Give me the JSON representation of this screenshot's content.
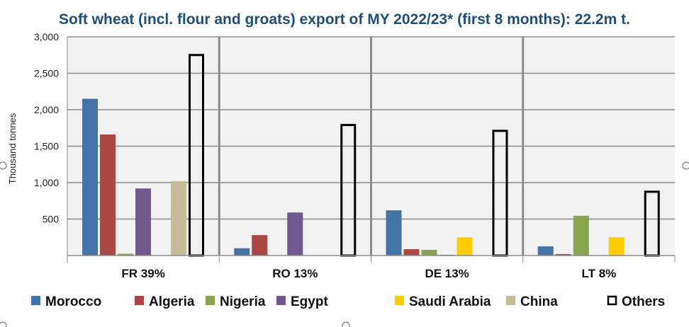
{
  "chart_data": {
    "type": "bar",
    "title": "Soft wheat (incl. flour and groats) export of MY 2022/23* (first 8 months):  22.2m t.",
    "ylabel": "Thousand tonnes",
    "xlabel": "",
    "ylim": [
      0,
      3000
    ],
    "yticks": [
      "500",
      "1,000",
      "1,500",
      "2,000",
      "2,500",
      "3,000"
    ],
    "ytick_values": [
      500,
      1000,
      1500,
      2000,
      2500,
      3000
    ],
    "grid": true,
    "legend_placement": "bottom",
    "categories": [
      "FR 39%",
      "RO 13%",
      "DE 13%",
      "LT 8%"
    ],
    "series": [
      {
        "name": "Morocco",
        "color": "#4572a7",
        "values": [
          2150,
          100,
          620,
          125
        ]
      },
      {
        "name": "Algeria",
        "color": "#aa4643",
        "values": [
          1660,
          280,
          87,
          20
        ]
      },
      {
        "name": "Nigeria",
        "color": "#89a54e",
        "values": [
          25,
          0,
          78,
          545
        ]
      },
      {
        "name": "Egypt",
        "color": "#71588f",
        "values": [
          920,
          590,
          10,
          0
        ]
      },
      {
        "name": "Saudi Arabia",
        "color": "#ffcc00",
        "values": [
          0,
          0,
          250,
          250
        ]
      },
      {
        "name": "China",
        "color": "#c4bd97",
        "values": [
          1020,
          0,
          0,
          0
        ]
      },
      {
        "name": "Others",
        "color": "none",
        "values": [
          2750,
          1790,
          1710,
          875
        ]
      }
    ]
  }
}
